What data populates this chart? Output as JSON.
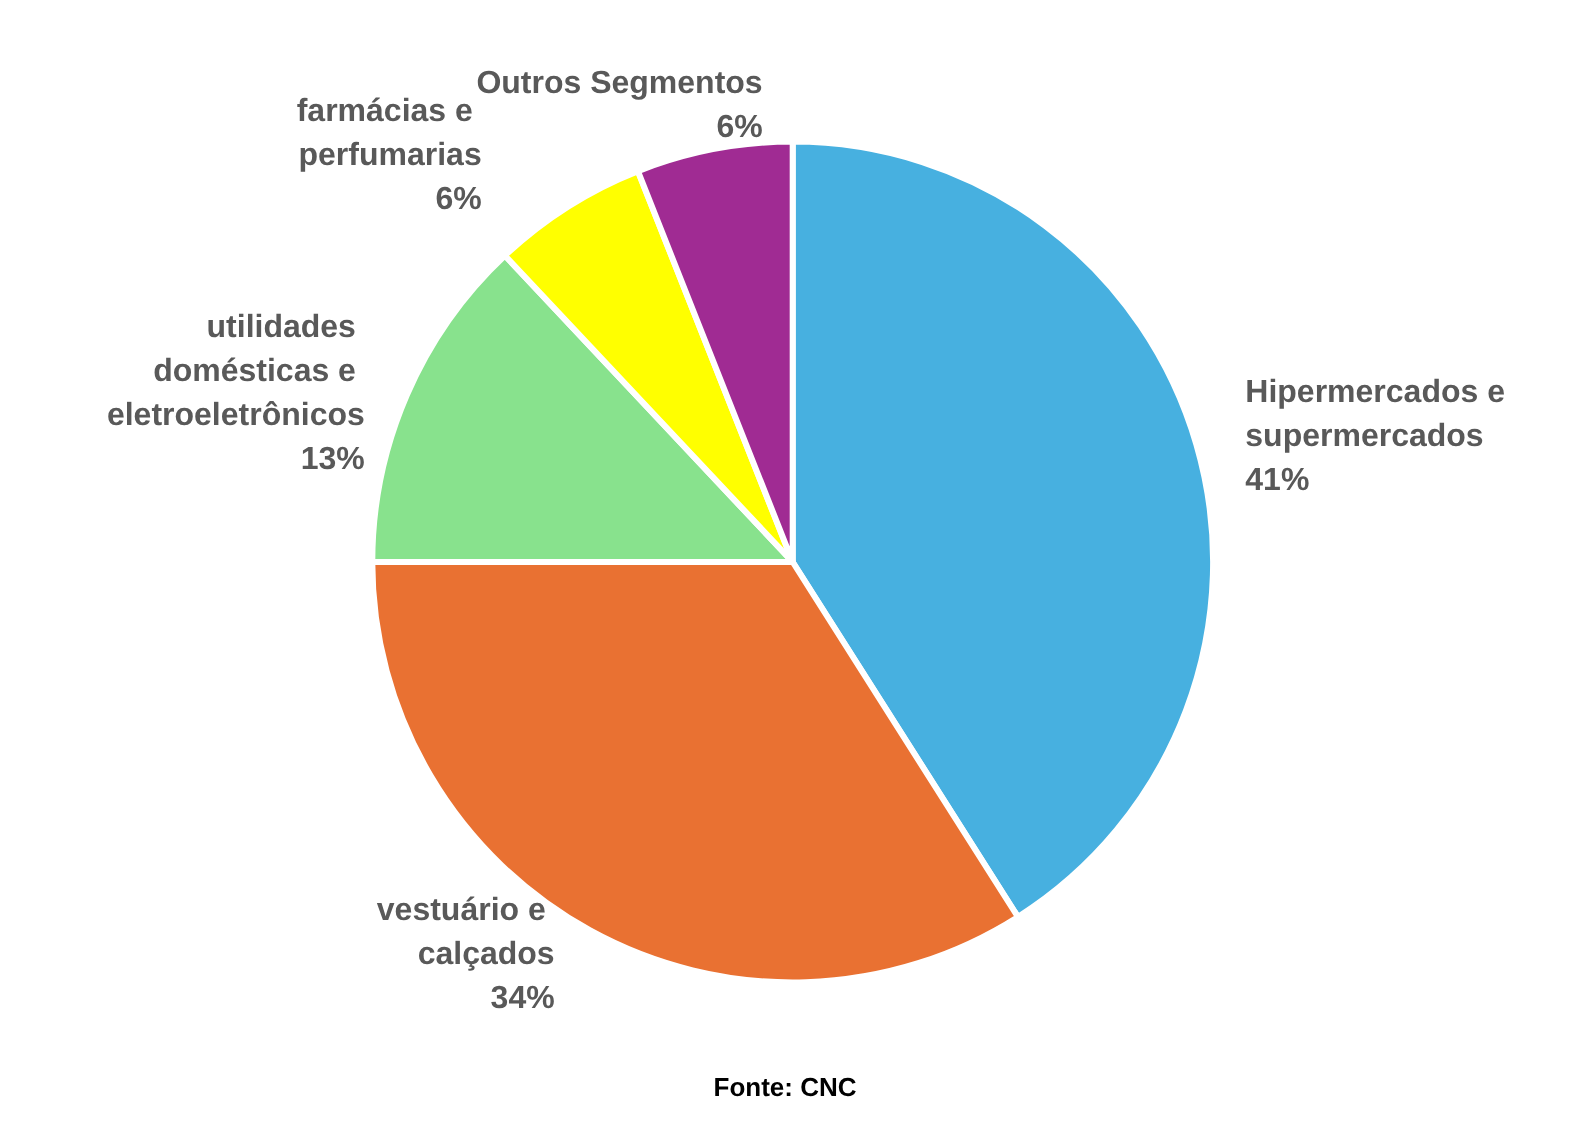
{
  "chart_data": {
    "type": "pie",
    "categories": [
      "Hipermercados e supermercados",
      "vestuário e calçados",
      "utilidades domésticas e eletroeletrônicos",
      "farmácias e perfumarias",
      "Outros Segmentos"
    ],
    "values": [
      41,
      34,
      13,
      6,
      6
    ],
    "colors": [
      "#47b0e0",
      "#e97132",
      "#88e28d",
      "#ffff00",
      "#a02b93"
    ],
    "value_labels": [
      "41%",
      "34%",
      "13%",
      "6%",
      "6%"
    ],
    "annotations": [
      "Fonte: CNC"
    ]
  }
}
